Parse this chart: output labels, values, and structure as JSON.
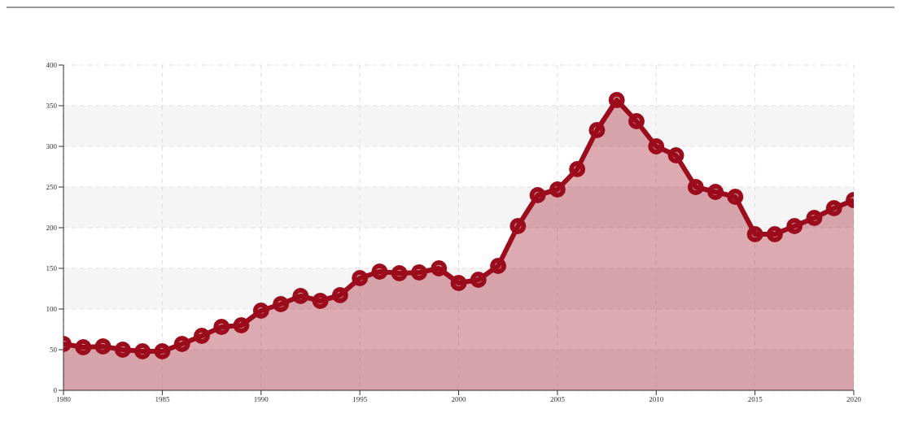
{
  "chart_data": {
    "type": "area",
    "x": [
      1980,
      1981,
      1982,
      1983,
      1984,
      1985,
      1986,
      1987,
      1988,
      1989,
      1990,
      1991,
      1992,
      1993,
      1994,
      1995,
      1996,
      1997,
      1998,
      1999,
      2000,
      2001,
      2002,
      2003,
      2004,
      2005,
      2006,
      2007,
      2008,
      2009,
      2010,
      2011,
      2012,
      2013,
      2014,
      2015,
      2016,
      2017,
      2018,
      2019,
      2020
    ],
    "series": [
      {
        "color": "#9b0c1c",
        "values": [
          57,
          53,
          54,
          50,
          48,
          48,
          57,
          67,
          78,
          80,
          98,
          106,
          116,
          110,
          117,
          138,
          146,
          144,
          145,
          150,
          132,
          136,
          153,
          202,
          240,
          247,
          272,
          320,
          357,
          331,
          300,
          289,
          250,
          244,
          238,
          192,
          192,
          202,
          212,
          224,
          234
        ]
      }
    ],
    "xlim": [
      1980,
      2020
    ],
    "xticks": [
      1980,
      1985,
      1990,
      1995,
      2000,
      2005,
      2010,
      2015,
      2020
    ],
    "ylim": [
      0,
      400
    ],
    "yticks": [
      0,
      50,
      100,
      150,
      200,
      250,
      300,
      350,
      400
    ],
    "grid": true,
    "marker": "circle",
    "line_style": "solid"
  }
}
